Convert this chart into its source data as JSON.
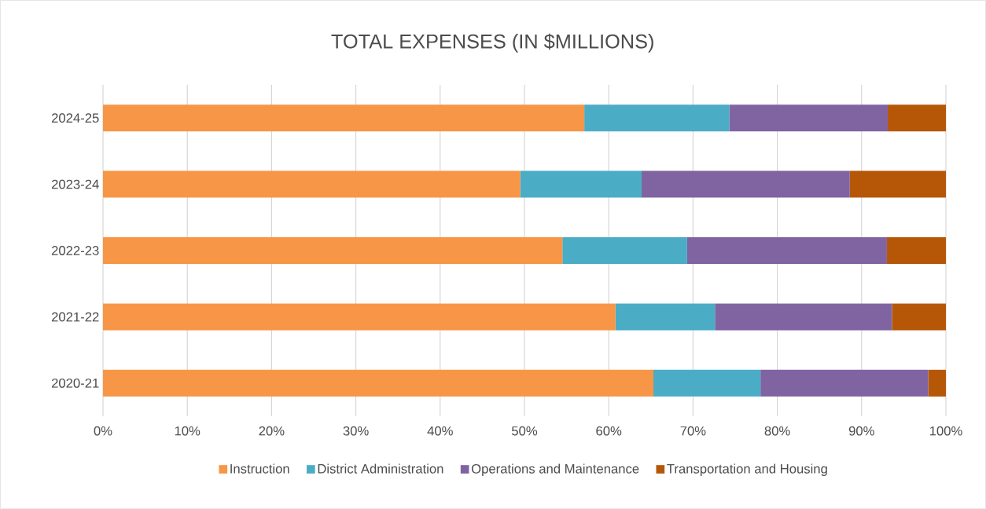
{
  "chart_data": {
    "type": "bar",
    "orientation": "horizontal",
    "stacked": true,
    "title": "TOTAL EXPENSES (IN $MILLIONS)",
    "categories": [
      "2024-25",
      "2023-24",
      "2022-23",
      "2021-22",
      "2020-21"
    ],
    "series": [
      {
        "name": "Instruction",
        "color": "#f79646",
        "values": [
          57.1,
          49.5,
          54.5,
          60.8,
          65.3
        ]
      },
      {
        "name": "District Administration",
        "color": "#4bacc6",
        "values": [
          17.2,
          14.4,
          14.8,
          11.8,
          12.7
        ]
      },
      {
        "name": "Operations and Maintenance",
        "color": "#8064a2",
        "values": [
          18.8,
          24.7,
          23.7,
          21.0,
          19.9
        ]
      },
      {
        "name": "Transportation and Housing",
        "color": "#b65708",
        "values": [
          6.9,
          11.4,
          7.0,
          6.4,
          2.1
        ]
      }
    ],
    "xlim": [
      0,
      100
    ],
    "xticks": [
      {
        "value": 0,
        "label": "0%"
      },
      {
        "value": 10,
        "label": "10%"
      },
      {
        "value": 20,
        "label": "20%"
      },
      {
        "value": 30,
        "label": "30%"
      },
      {
        "value": 40,
        "label": "40%"
      },
      {
        "value": 50,
        "label": "50%"
      },
      {
        "value": 60,
        "label": "60%"
      },
      {
        "value": 70,
        "label": "70%"
      },
      {
        "value": 80,
        "label": "80%"
      },
      {
        "value": 90,
        "label": "90%"
      },
      {
        "value": 100,
        "label": "100%"
      }
    ],
    "grid": "x",
    "legend": "bottom"
  }
}
